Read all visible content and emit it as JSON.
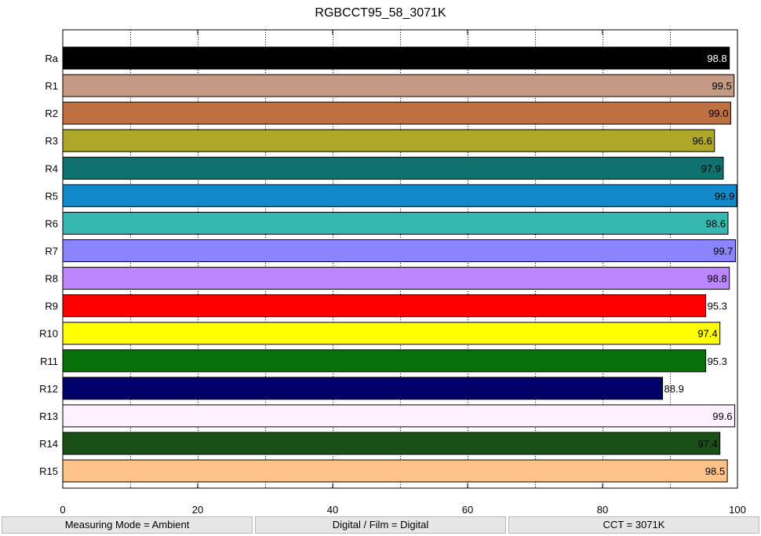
{
  "chart_data": {
    "type": "bar",
    "orientation": "horizontal",
    "title": "RGBCCT95_58_3071K",
    "xlabel": "",
    "ylabel": "",
    "xlim": [
      0,
      100
    ],
    "x_ticks": [
      "0",
      "20",
      "40",
      "60",
      "80",
      "100"
    ],
    "grid": "vertical dotted",
    "categories": [
      "Ra",
      "R1",
      "R2",
      "R3",
      "R4",
      "R5",
      "R6",
      "R7",
      "R8",
      "R9",
      "R10",
      "R11",
      "R12",
      "R13",
      "R14",
      "R15"
    ],
    "values": [
      98.8,
      99.5,
      99.0,
      96.6,
      97.9,
      99.9,
      98.6,
      99.7,
      98.8,
      95.3,
      97.4,
      95.3,
      88.9,
      99.6,
      97.4,
      98.5
    ],
    "value_labels": [
      "98.8",
      "99.5",
      "99.0",
      "96.6",
      "97.9",
      "99.9",
      "98.6",
      "99.7",
      "98.8",
      "95.3",
      "97.4",
      "95.3",
      "88.9",
      "99.6",
      "97.4",
      "98.5"
    ],
    "colors": [
      "#000000",
      "#c49a85",
      "#bf7040",
      "#aea72a",
      "#10726e",
      "#1289c8",
      "#36b8b0",
      "#8a84ff",
      "#bb86ff",
      "#ff0000",
      "#ffff00",
      "#087008",
      "#000068",
      "#fff0ff",
      "#1a5018",
      "#ffc288"
    ],
    "label_colors": [
      "#ffffff",
      "#000000",
      "#000000",
      "#000000",
      "#000000",
      "#000000",
      "#000000",
      "#000000",
      "#000000",
      "#000000",
      "#000000",
      "#000000",
      "#000000",
      "#000000",
      "#000000",
      "#000000"
    ]
  },
  "status": {
    "measuring_mode": "Measuring Mode = Ambient",
    "digital_film": "Digital / Film = Digital",
    "cct": "CCT = 3071K"
  }
}
